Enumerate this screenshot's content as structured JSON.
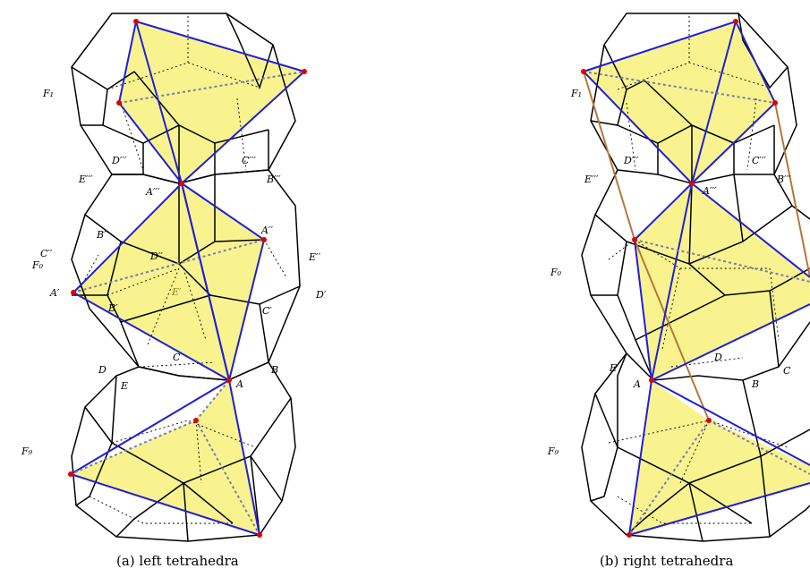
{
  "captions": {
    "left": "(a) left tetrahedra",
    "right": "(b) right tetrahedra"
  },
  "left_labels": {
    "F1": "F₁",
    "F0": "F₀",
    "F9": "F₉",
    "Dppp": "D′′′",
    "Cppp": "C′′′",
    "Eppp": "E′′′",
    "Bppp": "B′′′",
    "Appp": "A′′′",
    "Bpp": "B′′",
    "App": "A′′",
    "Cpp": "C′′",
    "Dpp": "D′′",
    "Epp": "E′′",
    "Ap": "A′",
    "Bp": "B′",
    "Ep": "E′",
    "Cp": "C′",
    "Dp": "D′",
    "D": "D",
    "C": "C",
    "B": "B",
    "E": "E",
    "A": "A"
  },
  "right_labels": {
    "F1": "F₁",
    "F0": "F₀",
    "F9": "F₉",
    "Dppp": "D′′′",
    "Cppp": "C′′′",
    "Eppp": "E′′′",
    "Bppp": "B′′′",
    "Appp": "A′′′",
    "D": "D",
    "E": "E",
    "A": "A",
    "B": "B",
    "C": "C"
  },
  "colors": {
    "edge": "#000000",
    "tetrahedron": "#1f1fd6",
    "face_fill": "#f7ef6a",
    "vertex": "#e00000",
    "connector": "#b5783a"
  }
}
